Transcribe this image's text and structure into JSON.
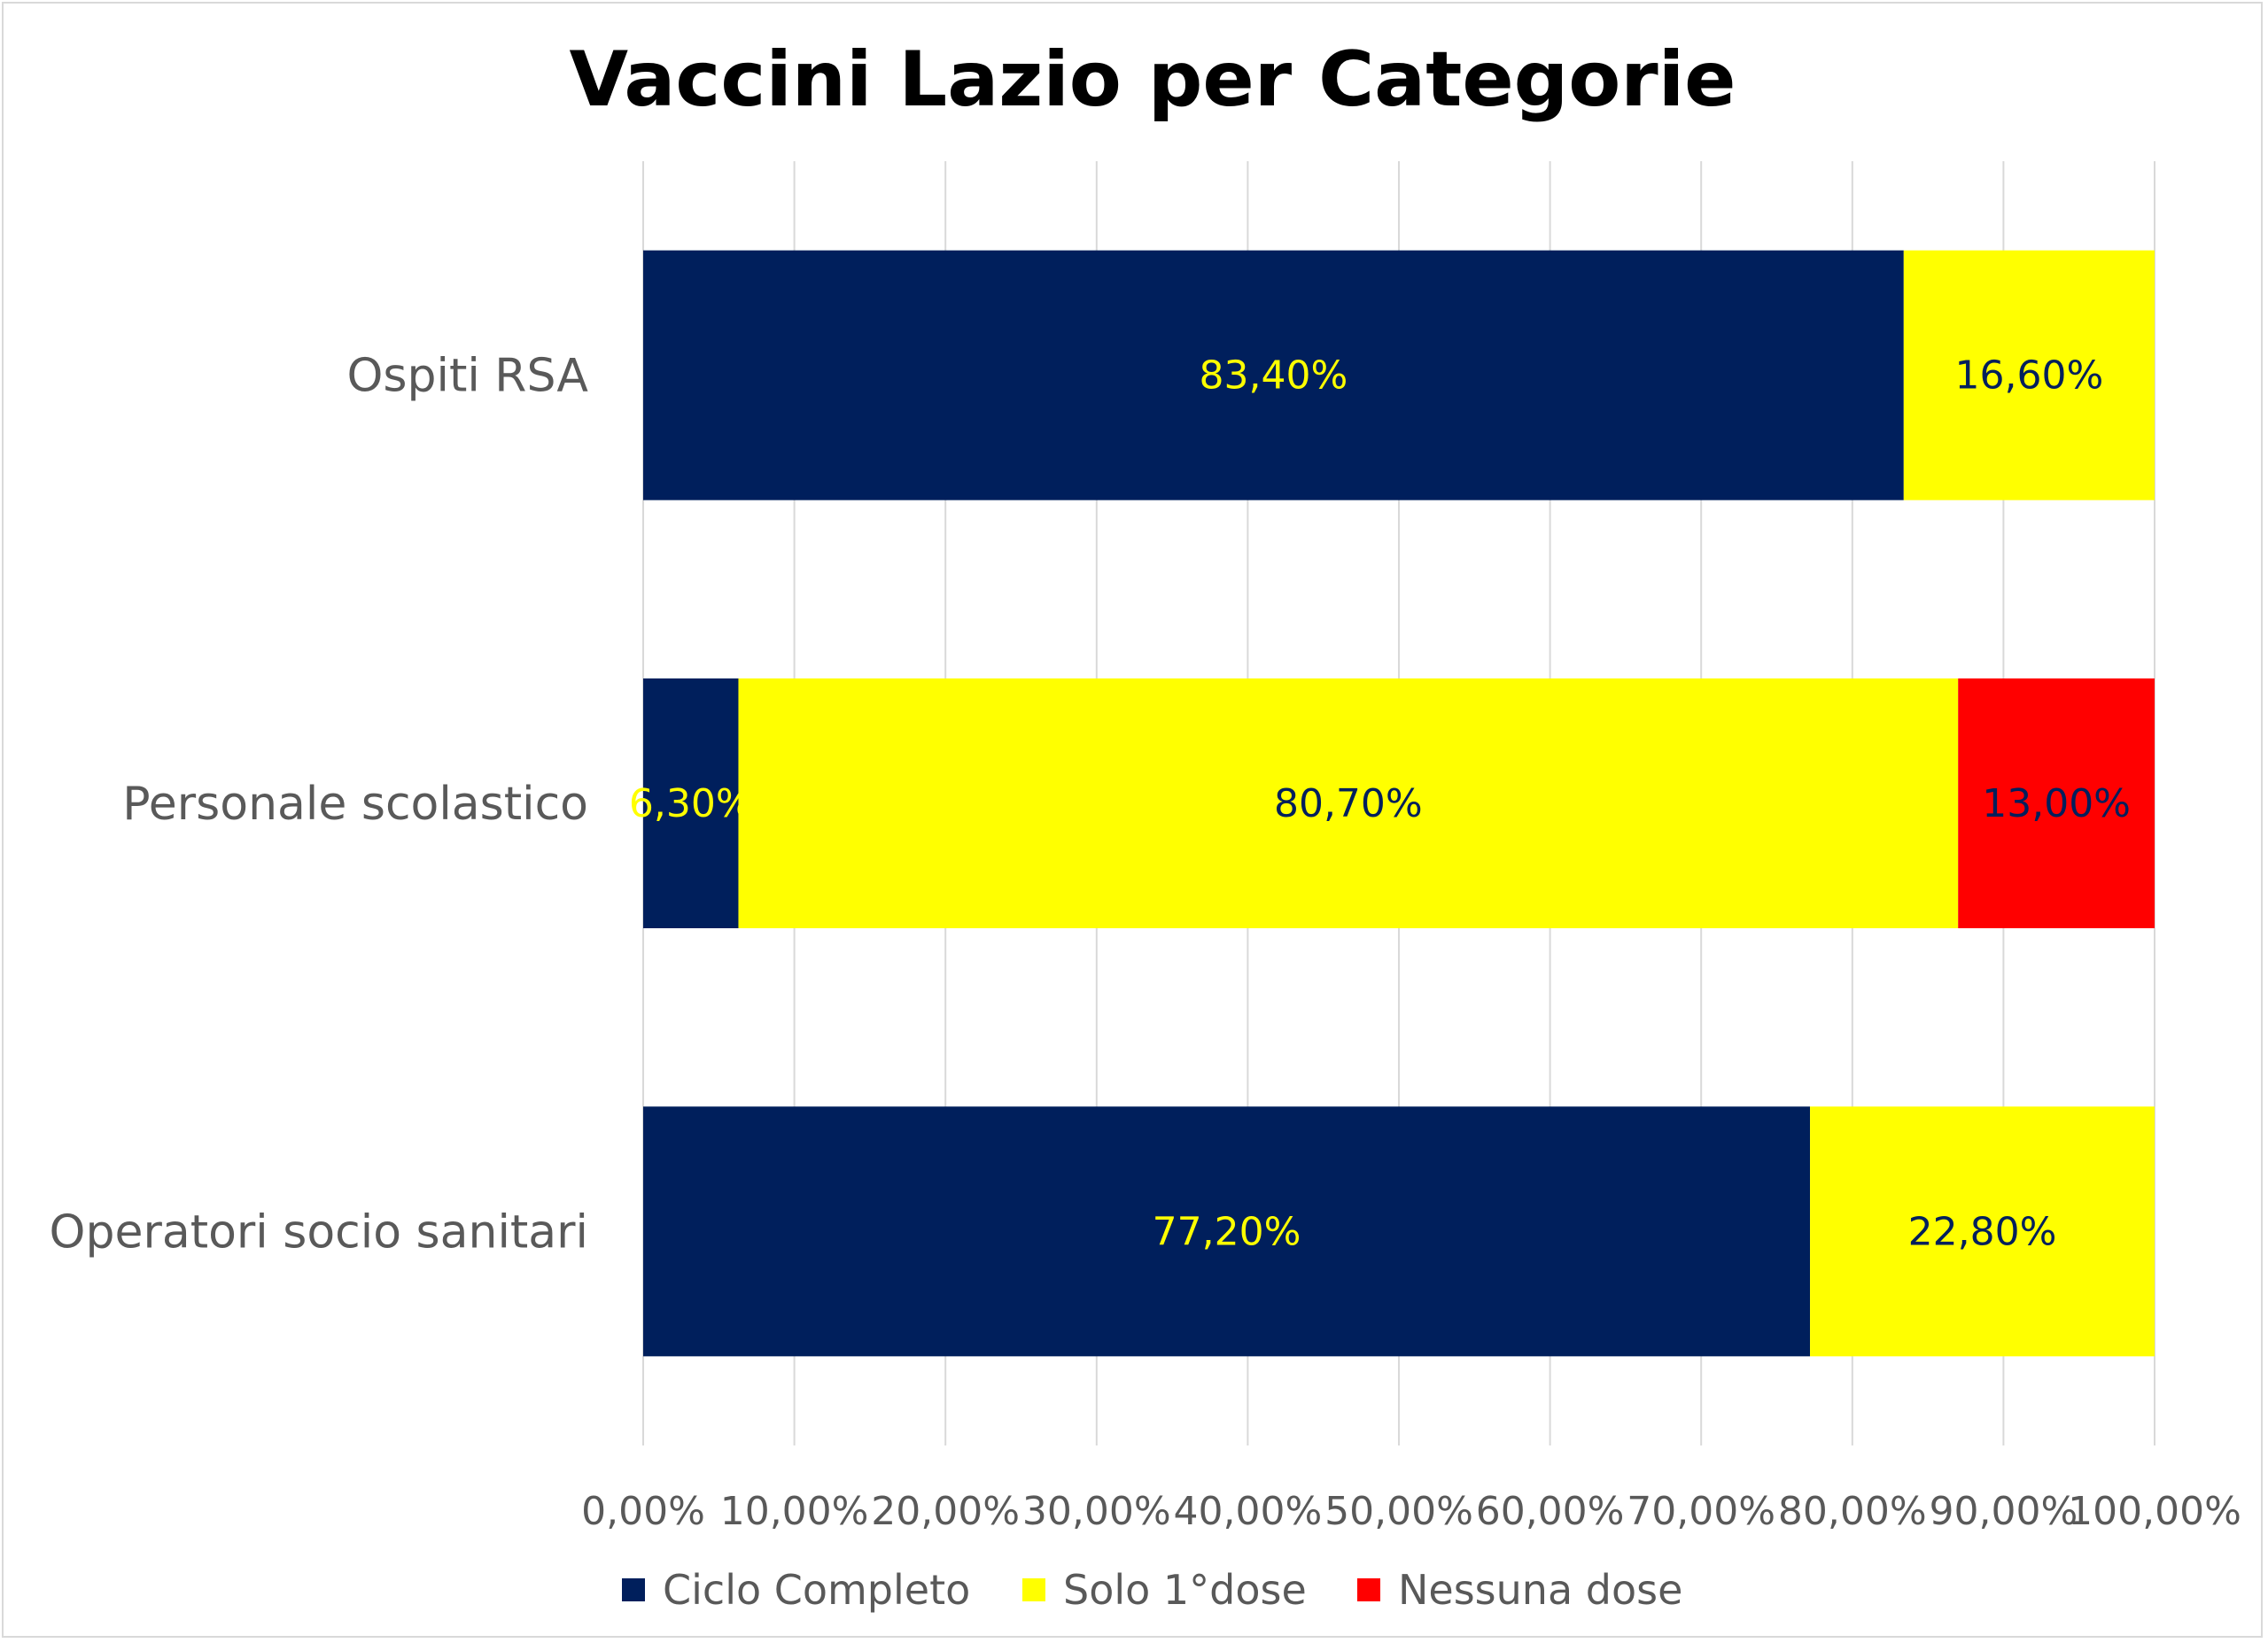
{
  "chart_data": {
    "type": "bar",
    "orientation": "horizontal",
    "stacked": true,
    "title": "Vaccini Lazio per Categorie",
    "categories": [
      "Ospiti RSA",
      "Personale scolastico",
      "Operatori socio sanitari"
    ],
    "series": [
      {
        "name": "Ciclo Completo",
        "color": "#001f5c",
        "label_color": "#ffff00",
        "values": [
          83.4,
          6.3,
          77.2
        ],
        "labels": [
          "83,40%",
          "6,30%",
          "77,20%"
        ]
      },
      {
        "name": "Solo 1°dose",
        "color": "#ffff00",
        "label_color": "#001f5c",
        "values": [
          16.6,
          80.7,
          22.8
        ],
        "labels": [
          "16,60%",
          "80,70%",
          "22,80%"
        ]
      },
      {
        "name": "Nessuna dose",
        "color": "#ff0000",
        "label_color": "#001f5c",
        "values": [
          0,
          13.0,
          0
        ],
        "labels": [
          "",
          "13,00%",
          ""
        ]
      }
    ],
    "xlim": [
      0,
      100
    ],
    "xticks": [
      0,
      10,
      20,
      30,
      40,
      50,
      60,
      70,
      80,
      90,
      100
    ],
    "xtick_labels": [
      "0,00%",
      "10,00%",
      "20,00%",
      "30,00%",
      "40,00%",
      "50,00%",
      "60,00%",
      "70,00%",
      "80,00%",
      "90,00%",
      "100,00%"
    ],
    "grid": true,
    "gridline_color": "#d9d9d9",
    "legend_position": "bottom"
  }
}
